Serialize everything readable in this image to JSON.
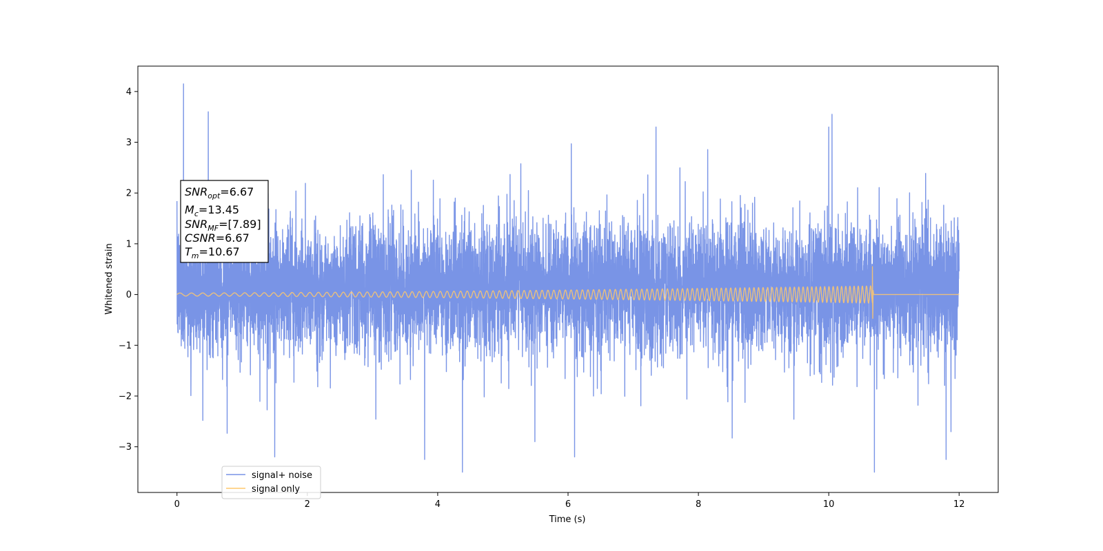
{
  "chart_data": {
    "type": "line",
    "xlabel": "Time (s)",
    "ylabel": "Whitened strain",
    "xlim": [
      -0.6,
      12.6
    ],
    "ylim": [
      -3.9,
      4.5
    ],
    "xticks": [
      0,
      2,
      4,
      6,
      8,
      10,
      12
    ],
    "yticks": [
      -3,
      -2,
      -1,
      0,
      1,
      2,
      3,
      4
    ],
    "xtick_labels": [
      "0",
      "2",
      "4",
      "6",
      "8",
      "10",
      "12"
    ],
    "ytick_labels": [
      "−3",
      "−2",
      "−1",
      "0",
      "1",
      "2",
      "3",
      "4"
    ],
    "grid": false,
    "legend_position": "lower-left",
    "series": [
      {
        "name": "signal+ noise",
        "color": "#7994e6",
        "description_values": {
          "t_start": 0,
          "t_end": 12,
          "typical_envelope": [
            -1.5,
            1.8
          ],
          "peaks": [
            {
              "x": 0.1,
              "y": 4.15
            },
            {
              "x": 0.48,
              "y": 3.6
            },
            {
              "x": 1.5,
              "y": 3.25
            },
            {
              "x": 7.35,
              "y": 3.3
            },
            {
              "x": 10.0,
              "y": 3.3
            },
            {
              "x": 10.05,
              "y": 3.55
            },
            {
              "x": 4.38,
              "y": -3.5
            },
            {
              "x": 10.7,
              "y": -3.5
            },
            {
              "x": 3.8,
              "y": -3.25
            },
            {
              "x": 11.8,
              "y": -3.25
            },
            {
              "x": 6.1,
              "y": -3.2
            },
            {
              "x": 1.5,
              "y": -3.2
            }
          ]
        }
      },
      {
        "name": "signal only",
        "color": "#ffc86b",
        "description_values": {
          "chirp_start": 0,
          "merger_time": 10.67,
          "amplitude_start": 0.03,
          "amplitude_end": 0.17,
          "merger_peak_max": 0.55,
          "merger_peak_min": -0.47,
          "post_merger_value": 0
        }
      }
    ]
  },
  "annotation": {
    "snr_opt_main": "SNR",
    "snr_opt_sub": "opt",
    "snr_opt_value": "=6.67",
    "mc_main": "M",
    "mc_sub": "c",
    "mc_value": "=13.45",
    "snr_mf_main": "SNR",
    "snr_mf_sub": "MF",
    "snr_mf_value": "=[7.89]",
    "csnr_main": "CSNR",
    "csnr_value": "=6.67",
    "tm_main": "T",
    "tm_sub": "m",
    "tm_value": "=10.67"
  },
  "legend": {
    "items": [
      {
        "label": "signal+ noise",
        "color": "#7994e6"
      },
      {
        "label": "signal only",
        "color": "#ffc86b"
      }
    ]
  }
}
